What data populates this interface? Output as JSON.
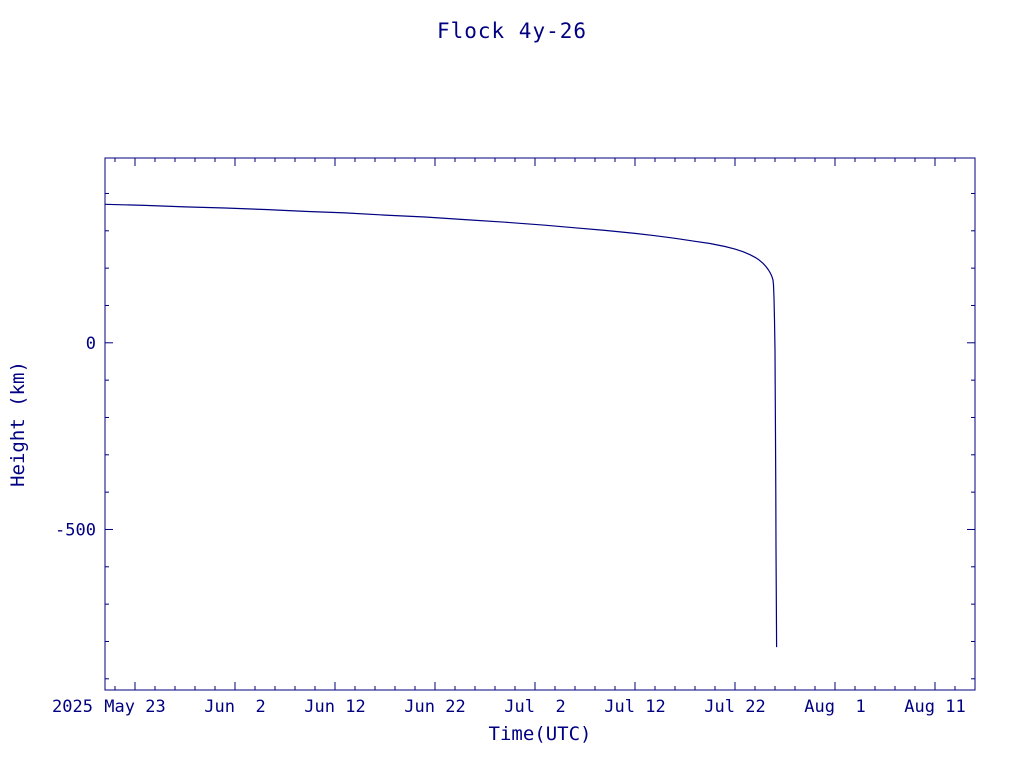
{
  "page": {
    "background": "#ffffff",
    "accent_color": "#000080"
  },
  "chart_data": {
    "type": "line",
    "title": "Flock 4y-26",
    "xlabel": "Time(UTC)",
    "ylabel": "Height (km)",
    "year_label": "2025",
    "x_unit": "days since 2025 May 20 (UTC)",
    "xlim": [
      0,
      87
    ],
    "ylim": [
      -930,
      495
    ],
    "grid": false,
    "legend": "none",
    "x_ticks": [
      {
        "pos": 3,
        "label": "May 23"
      },
      {
        "pos": 13,
        "label": "Jun  2"
      },
      {
        "pos": 23,
        "label": "Jun 12"
      },
      {
        "pos": 33,
        "label": "Jun 22"
      },
      {
        "pos": 43,
        "label": "Jul  2"
      },
      {
        "pos": 53,
        "label": "Jul 12"
      },
      {
        "pos": 63,
        "label": "Jul 22"
      },
      {
        "pos": 73,
        "label": "Aug  1"
      },
      {
        "pos": 83,
        "label": "Aug 11"
      }
    ],
    "x_minor_step": 2,
    "y_ticks": [
      {
        "pos": 0,
        "label": "0"
      },
      {
        "pos": -500,
        "label": "-500"
      }
    ],
    "y_minor_step": 100,
    "line_color": "#000080",
    "series": [
      {
        "name": "height",
        "points": [
          [
            0,
            371
          ],
          [
            4,
            368
          ],
          [
            8,
            364
          ],
          [
            12,
            361
          ],
          [
            16,
            357
          ],
          [
            20,
            352
          ],
          [
            24,
            348
          ],
          [
            28,
            342
          ],
          [
            32,
            337
          ],
          [
            36,
            330
          ],
          [
            40,
            323
          ],
          [
            44,
            315
          ],
          [
            47,
            308
          ],
          [
            50,
            301
          ],
          [
            53,
            293
          ],
          [
            55,
            287
          ],
          [
            57,
            280
          ],
          [
            59,
            272
          ],
          [
            60.5,
            266
          ],
          [
            62,
            258
          ],
          [
            63,
            251
          ],
          [
            63.8,
            244
          ],
          [
            64.5,
            236
          ],
          [
            65,
            229
          ],
          [
            65.4,
            222
          ],
          [
            65.8,
            213
          ],
          [
            66.1,
            204
          ],
          [
            66.35,
            195
          ],
          [
            66.55,
            186
          ],
          [
            66.7,
            177
          ],
          [
            66.8,
            168
          ],
          [
            66.85,
            155
          ],
          [
            66.9,
            120
          ],
          [
            66.95,
            60
          ],
          [
            67.0,
            -20
          ],
          [
            67.02,
            -120
          ],
          [
            67.05,
            -250
          ],
          [
            67.08,
            -400
          ],
          [
            67.1,
            -550
          ],
          [
            67.13,
            -680
          ],
          [
            67.16,
            -815
          ]
        ]
      }
    ]
  }
}
